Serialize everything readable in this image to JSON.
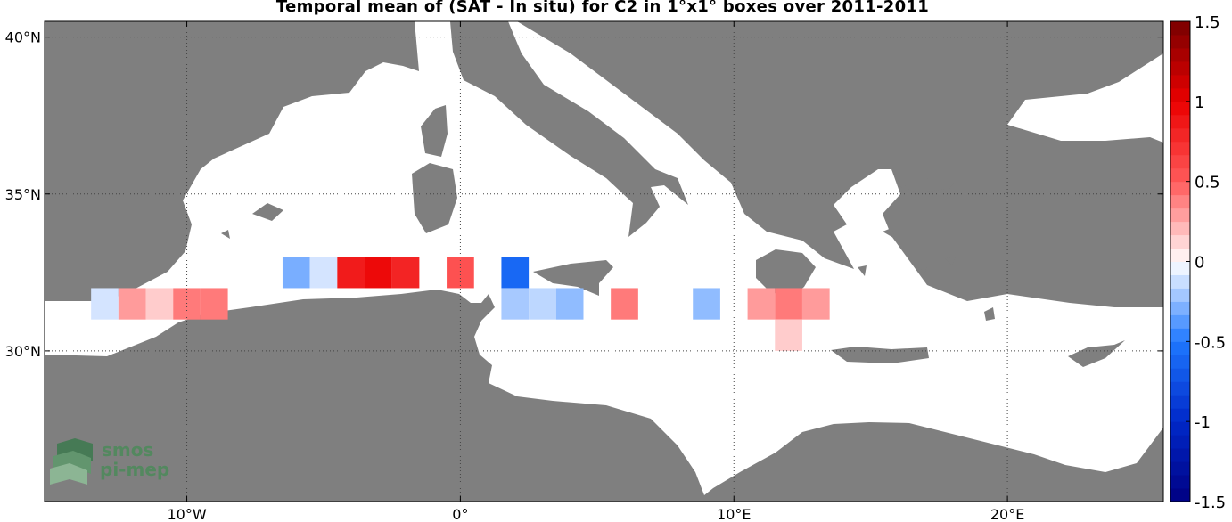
{
  "title": "Temporal mean of (SAT - In situ) for C2 in 1°x1° boxes over 2011-2011",
  "map": {
    "lat_labels": [
      {
        "text": "40°N",
        "lat": 40
      },
      {
        "text": "35°N",
        "lat": 35
      },
      {
        "text": "30°N",
        "lat": 30
      }
    ],
    "lon_labels": [
      {
        "text": "10°W",
        "lon": -10
      },
      {
        "text": "0°",
        "lon": 0
      },
      {
        "text": "10°E",
        "lon": 10
      },
      {
        "text": "20°E",
        "lon": 20
      }
    ],
    "extent": {
      "lon_min": -15.2,
      "lon_max": 25.7,
      "lat_min": 25.2,
      "lat_max": 40.5
    },
    "colors": {
      "land": "#7f7f7f",
      "sea": "#ffffff",
      "grid": "#444444"
    }
  },
  "colorbar": {
    "range": [
      -1.5,
      1.5
    ],
    "ticks": [
      {
        "text": "1.5",
        "value": 1.5
      },
      {
        "text": "1",
        "value": 1
      },
      {
        "text": "0.5",
        "value": 0.5
      },
      {
        "text": "0",
        "value": 0
      },
      {
        "text": "-0.5",
        "value": -0.5
      },
      {
        "text": "-1",
        "value": -1
      },
      {
        "text": "-1.5",
        "value": -1.5
      }
    ]
  },
  "chart_data": {
    "type": "heatmap",
    "title": "Temporal mean of (SAT - In situ) for C2 in 1°x1° boxes over 2011-2011",
    "cell_size_deg": 1,
    "value_range": [
      -1.5,
      1.5
    ],
    "cells": [
      {
        "lon": -13,
        "lat": 31.5,
        "value": -0.1
      },
      {
        "lon": -12,
        "lat": 31.5,
        "value": 0.3
      },
      {
        "lon": -11,
        "lat": 31.5,
        "value": 0.15
      },
      {
        "lon": -10,
        "lat": 31.5,
        "value": 0.4
      },
      {
        "lon": -9,
        "lat": 31.5,
        "value": 0.4
      },
      {
        "lon": -6,
        "lat": 32.5,
        "value": -0.3
      },
      {
        "lon": -5,
        "lat": 32.5,
        "value": -0.1
      },
      {
        "lon": -4,
        "lat": 32.5,
        "value": 0.85
      },
      {
        "lon": -3,
        "lat": 32.5,
        "value": 0.95
      },
      {
        "lon": -2,
        "lat": 32.5,
        "value": 0.8
      },
      {
        "lon": 0,
        "lat": 32.5,
        "value": 0.55
      },
      {
        "lon": 2,
        "lat": 32.5,
        "value": -0.6
      },
      {
        "lon": 2,
        "lat": 31.5,
        "value": -0.2
      },
      {
        "lon": 3,
        "lat": 31.5,
        "value": -0.15
      },
      {
        "lon": 4,
        "lat": 31.5,
        "value": -0.25
      },
      {
        "lon": 6,
        "lat": 31.5,
        "value": 0.4
      },
      {
        "lon": 9,
        "lat": 31.5,
        "value": -0.25
      },
      {
        "lon": 11,
        "lat": 31.5,
        "value": 0.3
      },
      {
        "lon": 12,
        "lat": 31.5,
        "value": 0.4
      },
      {
        "lon": 13,
        "lat": 31.5,
        "value": 0.3
      },
      {
        "lon": 12,
        "lat": 30.5,
        "value": 0.15
      }
    ]
  },
  "logo": {
    "line1": "smos",
    "line2": "pi-mep"
  }
}
